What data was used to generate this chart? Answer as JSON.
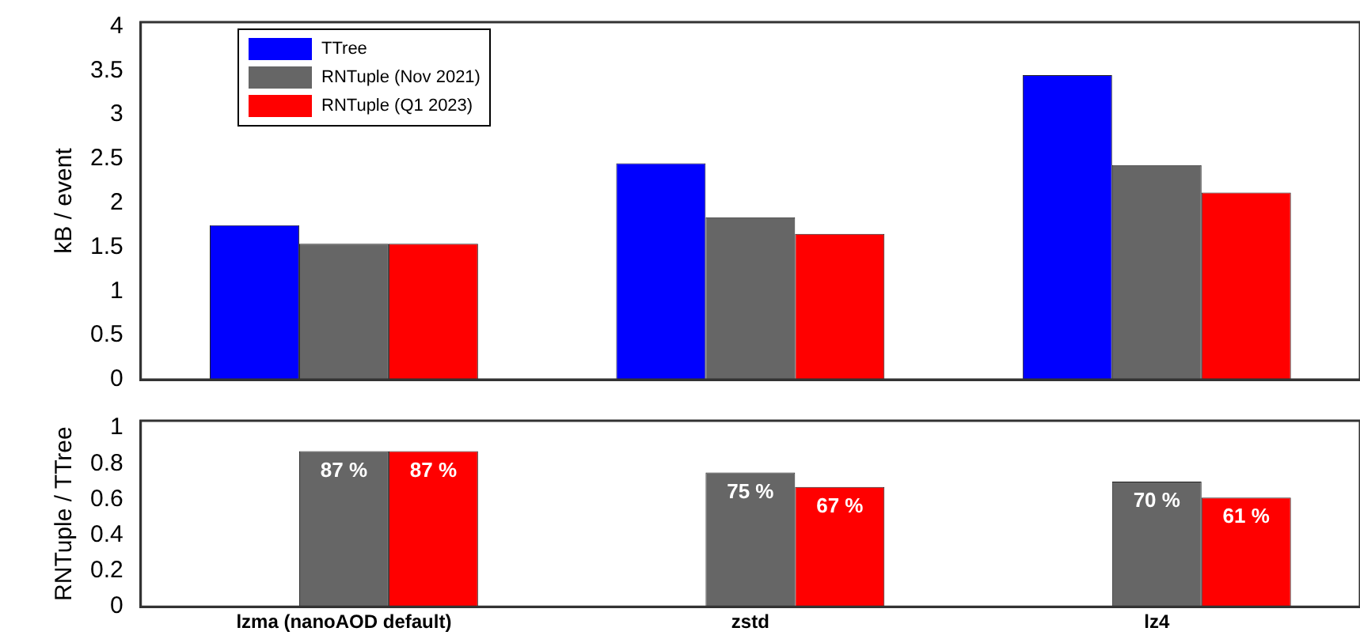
{
  "chart_data": [
    {
      "type": "bar",
      "ylabel": "kB / event",
      "categories": [
        null,
        null,
        null
      ],
      "ylim": [
        0,
        4.05
      ],
      "yticks": [
        0,
        0.5,
        1,
        1.5,
        2,
        2.5,
        3,
        3.5,
        4
      ],
      "tick_labels": "y",
      "legend": "top left",
      "grid": false,
      "series": [
        {
          "name": "TTree",
          "color": "#0000ff",
          "values": [
            1.75,
            2.45,
            3.45
          ]
        },
        {
          "name": "RNTuple (Nov 2021)",
          "color": "#666666",
          "values": [
            1.54,
            1.84,
            2.43
          ]
        },
        {
          "name": "RNTuple (Q1 2023)",
          "color": "#ff0000",
          "values": [
            1.54,
            1.65,
            2.12
          ]
        }
      ]
    },
    {
      "type": "bar",
      "ylabel": "RNTuple / TTree",
      "categories": [
        "lzma (nanoAOD default)",
        "zstd",
        "lz4"
      ],
      "ylim": [
        0,
        1.04
      ],
      "yticks": [
        0,
        0.2,
        0.4,
        0.6,
        0.8,
        1
      ],
      "grid": false,
      "series": [
        {
          "color": "#666666",
          "values": [
            0.87,
            0.75,
            0.7
          ],
          "value_labels": [
            "87 %",
            "75 %",
            "70 %"
          ]
        },
        {
          "color": "#ff0000",
          "values": [
            0.87,
            0.67,
            0.61
          ],
          "value_labels": [
            "87 %",
            "67 %",
            "61 %"
          ]
        }
      ]
    }
  ]
}
